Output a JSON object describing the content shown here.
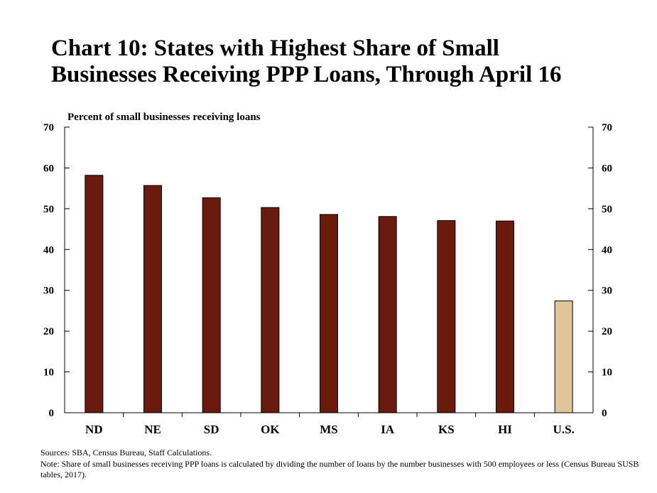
{
  "title_lines": [
    "Chart 10: States with Highest Share of Small",
    "Businesses Receiving PPP Loans, Through April 16"
  ],
  "chart_data": {
    "type": "bar",
    "title": "Chart 10: States with Highest Share of Small Businesses Receiving PPP Loans, Through April 16",
    "ylabel": "Percent of small businesses receiving loans",
    "xlabel": "",
    "categories": [
      "ND",
      "NE",
      "SD",
      "OK",
      "MS",
      "IA",
      "KS",
      "HI",
      "U.S."
    ],
    "values": [
      58.2,
      55.7,
      52.7,
      50.3,
      48.6,
      48.1,
      47.1,
      47.0,
      27.4
    ],
    "colors": [
      "#6b1a0e",
      "#6b1a0e",
      "#6b1a0e",
      "#6b1a0e",
      "#6b1a0e",
      "#6b1a0e",
      "#6b1a0e",
      "#6b1a0e",
      "#dec59a"
    ],
    "ylim": [
      0,
      70
    ],
    "yticks": [
      0,
      10,
      20,
      30,
      40,
      50,
      60,
      70
    ],
    "grid": false,
    "right_axis": true
  },
  "notes": {
    "sources": "Sources: SBA, Census Bureau, Staff Calculations.",
    "note": "Note: Share of small businesses receiving PPP loans is calculated by dividing the number of loans by the number businesses with 500 employees or less (Census Bureau SUSB tables, 2017)."
  }
}
